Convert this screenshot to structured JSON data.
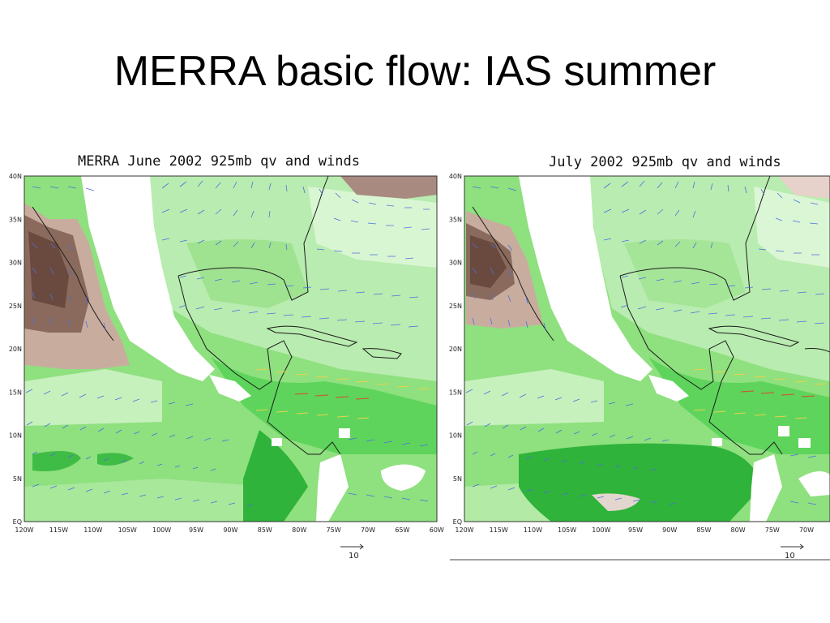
{
  "slide": {
    "title": "MERRA basic flow: IAS summer"
  },
  "maps": [
    {
      "title": "MERRA June 2002 925mb qv and winds",
      "lat_labels": [
        "40N",
        "35N",
        "30N",
        "25N",
        "20N",
        "15N",
        "10N",
        "5N",
        "EQ"
      ],
      "lon_labels": [
        "120W",
        "115W",
        "110W",
        "105W",
        "100W",
        "95W",
        "90W",
        "85W",
        "80W",
        "75W",
        "70W",
        "65W",
        "60W"
      ],
      "reference_vector_label": "10"
    },
    {
      "title": "July 2002 925mb qv and winds",
      "lat_labels": [
        "40N",
        "35N",
        "30N",
        "25N",
        "20N",
        "15N",
        "10N",
        "5N",
        "EQ"
      ],
      "lon_labels": [
        "120W",
        "115W",
        "110W",
        "105W",
        "100W",
        "95W",
        "90W",
        "85W",
        "80W",
        "75W",
        "70W"
      ],
      "reference_vector_label": "10"
    }
  ],
  "colors": {
    "dry": "#6e4d3f",
    "moderate": "#c9b2a6",
    "moist_light": "#ccf3c4",
    "moist": "#7ee07a",
    "moist_high": "#1fa62a",
    "vectors": "#4c6fe0",
    "vectors_strong": "#e8d34a",
    "vectors_max": "#d84b2a"
  }
}
